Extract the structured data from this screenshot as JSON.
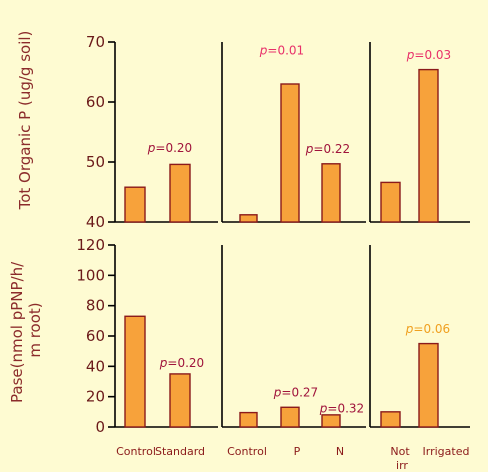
{
  "chart_data": [
    {
      "type": "bar",
      "panel": "top-left",
      "ylabel": "Tot Organic P (ug/g soil)",
      "ylim": [
        40,
        70
      ],
      "yticks": [
        40,
        50,
        60,
        70
      ],
      "categories": [
        "Control",
        "Standard"
      ],
      "values": [
        45.8,
        49.6
      ],
      "annotations": [
        {
          "text": "p=0.20",
          "color": "#a0143c"
        }
      ]
    },
    {
      "type": "bar",
      "panel": "top-middle",
      "ylim": [
        40,
        70
      ],
      "categories": [
        "Control",
        "P",
        "N"
      ],
      "values": [
        41.2,
        63.0,
        49.7
      ],
      "annotations": [
        {
          "text": "p=0.01",
          "color": "#e8306a"
        },
        {
          "text": "p=0.22",
          "color": "#a0143c"
        }
      ]
    },
    {
      "type": "bar",
      "panel": "top-right",
      "ylim": [
        40,
        70
      ],
      "categories": [
        "Not irr",
        "Irrigated"
      ],
      "values": [
        46.6,
        65.4
      ],
      "annotations": [
        {
          "text": "p=0.03",
          "color": "#e8306a"
        }
      ]
    },
    {
      "type": "bar",
      "panel": "bottom-left",
      "ylabel": "Pase(nmol pPNP/h/m root)",
      "ylim": [
        0,
        120
      ],
      "yticks": [
        0,
        20,
        40,
        60,
        80,
        100,
        120
      ],
      "categories": [
        "Control",
        "Standard"
      ],
      "values": [
        73,
        35
      ],
      "annotations": [
        {
          "text": "p=0.20",
          "color": "#a0143c"
        }
      ]
    },
    {
      "type": "bar",
      "panel": "bottom-middle",
      "ylim": [
        0,
        120
      ],
      "categories": [
        "Control",
        "P",
        "N"
      ],
      "values": [
        9.5,
        13,
        8
      ],
      "annotations": [
        {
          "text": "p=0.27",
          "color": "#a0143c"
        },
        {
          "text": "p=0.32",
          "color": "#a0143c"
        }
      ]
    },
    {
      "type": "bar",
      "panel": "bottom-right",
      "ylim": [
        0,
        120
      ],
      "categories": [
        "Not irr",
        "Irrigated"
      ],
      "values": [
        10,
        55
      ],
      "annotations": [
        {
          "text": "p=0.06",
          "color": "#f0a020"
        }
      ]
    }
  ],
  "colors": {
    "background": "#fefbd2",
    "bar_fill": "#f7a23b",
    "bar_stroke": "#8b1a1a",
    "label_text": "#8b1a1a"
  }
}
